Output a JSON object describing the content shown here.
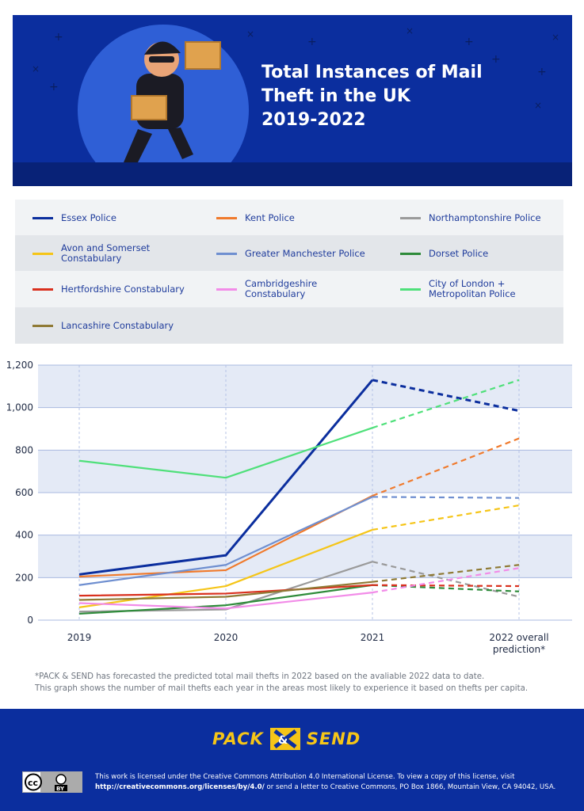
{
  "header": {
    "title_lines": [
      "Total Instances of Mail",
      "Theft in the UK",
      "2019-2022"
    ]
  },
  "legend": [
    {
      "label": "Essex Police",
      "color": "#0b2e9e"
    },
    {
      "label": "Kent Police",
      "color": "#f07a2c"
    },
    {
      "label": "Northamptonshire Police",
      "color": "#9a9a9a"
    },
    {
      "label": "Avon and Somerset Constabulary",
      "color": "#f5c518"
    },
    {
      "label": "Greater Manchester Police",
      "color": "#6f8fd0"
    },
    {
      "label": "Dorset Police",
      "color": "#2e8b3a"
    },
    {
      "label": "Hertfordshire Constabulary",
      "color": "#d9301e"
    },
    {
      "label": "Cambridgeshire Constabulary",
      "color": "#f28ce8"
    },
    {
      "label": "City of London + Metropolitan Police",
      "color": "#4fe07a"
    },
    {
      "label": "Lancashire Constabulary",
      "color": "#8f7a35"
    }
  ],
  "chart_data": {
    "type": "line",
    "categories": [
      "2019",
      "2020",
      "2021",
      "2022 overall prediction*"
    ],
    "ylim": [
      0,
      1200
    ],
    "yticks": [
      "0",
      "200",
      "400",
      "600",
      "800",
      "1,000",
      "1,200"
    ],
    "ytick_values": [
      0,
      200,
      400,
      600,
      800,
      1000,
      1200
    ],
    "grid": true,
    "dashed_from_index": 2,
    "series": [
      {
        "name": "Essex Police",
        "color": "#0b2e9e",
        "values": [
          215,
          305,
          1130,
          985
        ]
      },
      {
        "name": "Kent Police",
        "color": "#f07a2c",
        "values": [
          205,
          235,
          585,
          855
        ]
      },
      {
        "name": "Northamptonshire Police",
        "color": "#9a9a9a",
        "values": [
          40,
          50,
          275,
          110
        ]
      },
      {
        "name": "Avon and Somerset Constabulary",
        "color": "#f5c518",
        "values": [
          60,
          160,
          425,
          540
        ]
      },
      {
        "name": "Greater Manchester Police",
        "color": "#6f8fd0",
        "values": [
          165,
          260,
          580,
          575
        ]
      },
      {
        "name": "Dorset Police",
        "color": "#2e8b3a",
        "values": [
          30,
          70,
          165,
          135
        ]
      },
      {
        "name": "Hertfordshire Constabulary",
        "color": "#d9301e",
        "values": [
          115,
          125,
          165,
          160
        ]
      },
      {
        "name": "Cambridgeshire Constabulary",
        "color": "#f28ce8",
        "values": [
          80,
          55,
          130,
          245
        ]
      },
      {
        "name": "City of London + Metropolitan Police",
        "color": "#4fe07a",
        "values": [
          750,
          670,
          905,
          1130
        ]
      },
      {
        "name": "Lancashire Constabulary",
        "color": "#8f7a35",
        "values": [
          95,
          110,
          180,
          260
        ]
      }
    ]
  },
  "note_lines": [
    "*PACK & SEND has forecasted the predicted total mail thefts in 2022 based on the avaliable 2022 data to date.",
    "This graph shows the number of mail thefts each year in the areas most likely to experience it based on thefts per capita."
  ],
  "footer": {
    "logo_left": "PACK",
    "logo_right": "SEND",
    "logo_mark": "&",
    "cc_badge_text": "BY",
    "license_line1": "This work is licensed under the Creative Commons Attribution 4.0 International License. To view a copy of this license, visit",
    "license_url": "http://creativecommons.org/licenses/by/4.0/",
    "license_line2_rest": " or send a letter to Creative Commons, PO Box 1866, Mountain View, CA 94042, USA."
  }
}
